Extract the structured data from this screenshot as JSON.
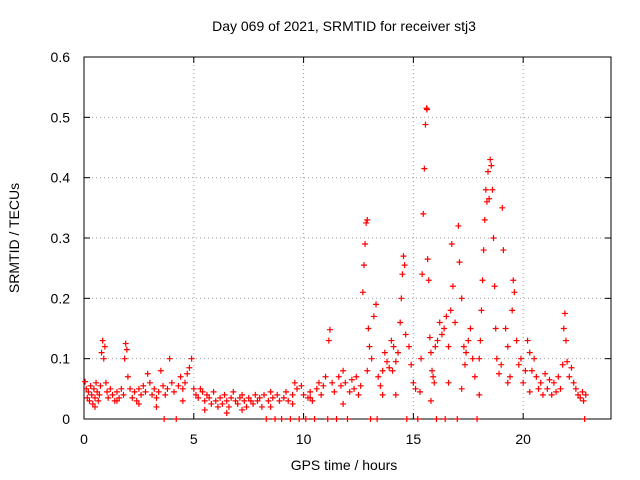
{
  "chart_data": {
    "type": "scatter",
    "title": "Day 069 of 2021, SRMTID for receiver stj3",
    "xlabel": "GPS time / hours",
    "ylabel": "SRMTID / TECUs",
    "xlim": [
      0,
      24
    ],
    "ylim": [
      0,
      0.6
    ],
    "xticks": [
      0,
      5,
      10,
      15,
      20
    ],
    "yticks": [
      0,
      0.1,
      0.2,
      0.3,
      0.4,
      0.5,
      0.6
    ],
    "xtick_labels": [
      "0",
      "5",
      "10",
      "15",
      "20"
    ],
    "ytick_labels": [
      "0",
      "0.1",
      "0.2",
      "0.3",
      "0.4",
      "0.5",
      "0.6"
    ],
    "grid": true,
    "marker": "+",
    "color": "#ff0000",
    "series": [
      {
        "name": "SRMTID",
        "points": [
          [
            0.05,
            0.062
          ],
          [
            0.1,
            0.05
          ],
          [
            0.15,
            0.035
          ],
          [
            0.2,
            0.045
          ],
          [
            0.25,
            0.03
          ],
          [
            0.3,
            0.055
          ],
          [
            0.35,
            0.04
          ],
          [
            0.4,
            0.025
          ],
          [
            0.45,
            0.05
          ],
          [
            0.5,
            0.035
          ],
          [
            0.55,
            0.06
          ],
          [
            0.6,
            0.045
          ],
          [
            0.65,
            0.03
          ],
          [
            0.7,
            0.04
          ],
          [
            0.75,
            0.055
          ],
          [
            0.8,
            0.11
          ],
          [
            0.85,
            0.13
          ],
          [
            0.9,
            0.1
          ],
          [
            0.95,
            0.12
          ],
          [
            1.0,
            0.06
          ],
          [
            1.05,
            0.045
          ],
          [
            1.1,
            0.035
          ],
          [
            1.2,
            0.05
          ],
          [
            1.3,
            0.04
          ],
          [
            1.4,
            0.03
          ],
          [
            1.5,
            0.045
          ],
          [
            1.6,
            0.035
          ],
          [
            1.7,
            0.05
          ],
          [
            1.8,
            0.04
          ],
          [
            1.85,
            0.1
          ],
          [
            1.9,
            0.125
          ],
          [
            1.95,
            0.115
          ],
          [
            2.0,
            0.07
          ],
          [
            2.1,
            0.05
          ],
          [
            2.2,
            0.035
          ],
          [
            2.3,
            0.045
          ],
          [
            2.4,
            0.03
          ],
          [
            2.5,
            0.05
          ],
          [
            2.6,
            0.04
          ],
          [
            2.7,
            0.055
          ],
          [
            2.8,
            0.045
          ],
          [
            2.9,
            0.075
          ],
          [
            3.0,
            0.06
          ],
          [
            3.1,
            0.04
          ],
          [
            3.2,
            0.05
          ],
          [
            3.3,
            0.035
          ],
          [
            3.4,
            0.045
          ],
          [
            3.5,
            0.08
          ],
          [
            3.6,
            0.055
          ],
          [
            3.65,
            0.0
          ],
          [
            3.7,
            0.04
          ],
          [
            3.8,
            0.05
          ],
          [
            3.9,
            0.1
          ],
          [
            4.0,
            0.06
          ],
          [
            4.1,
            0.045
          ],
          [
            4.2,
            0.0
          ],
          [
            4.3,
            0.055
          ],
          [
            4.4,
            0.07
          ],
          [
            4.5,
            0.05
          ],
          [
            4.6,
            0.06
          ],
          [
            4.7,
            0.075
          ],
          [
            4.8,
            0.085
          ],
          [
            4.9,
            0.1
          ],
          [
            5.0,
            0.05
          ],
          [
            5.1,
            0.04
          ],
          [
            5.2,
            0.035
          ],
          [
            5.3,
            0.05
          ],
          [
            5.4,
            0.045
          ],
          [
            5.5,
            0.03
          ],
          [
            5.6,
            0.04
          ],
          [
            5.7,
            0.035
          ],
          [
            5.8,
            0.025
          ],
          [
            5.9,
            0.045
          ],
          [
            6.0,
            0.03
          ],
          [
            6.1,
            0.02
          ],
          [
            6.2,
            0.035
          ],
          [
            6.3,
            0.025
          ],
          [
            6.4,
            0.04
          ],
          [
            6.5,
            0.03
          ],
          [
            6.6,
            0.02
          ],
          [
            6.7,
            0.035
          ],
          [
            6.8,
            0.045
          ],
          [
            6.9,
            0.03
          ],
          [
            7.0,
            0.025
          ],
          [
            7.1,
            0.035
          ],
          [
            7.2,
            0.04
          ],
          [
            7.3,
            0.03
          ],
          [
            7.4,
            0.02
          ],
          [
            7.5,
            0.035
          ],
          [
            7.6,
            0.03
          ],
          [
            7.7,
            0.025
          ],
          [
            7.8,
            0.04
          ],
          [
            7.9,
            0.03
          ],
          [
            8.0,
            0.035
          ],
          [
            8.1,
            0.02
          ],
          [
            8.2,
            0.04
          ],
          [
            8.3,
            0.0
          ],
          [
            8.4,
            0.03
          ],
          [
            8.5,
            0.045
          ],
          [
            8.6,
            0.035
          ],
          [
            8.7,
            0.0
          ],
          [
            8.8,
            0.04
          ],
          [
            8.9,
            0.03
          ],
          [
            9.0,
            0.0
          ],
          [
            9.1,
            0.035
          ],
          [
            9.2,
            0.045
          ],
          [
            9.3,
            0.03
          ],
          [
            9.4,
            0.0
          ],
          [
            9.5,
            0.04
          ],
          [
            9.6,
            0.06
          ],
          [
            9.7,
            0.05
          ],
          [
            9.8,
            0.0
          ],
          [
            9.9,
            0.055
          ],
          [
            10.0,
            0.04
          ],
          [
            10.1,
            0.0
          ],
          [
            10.2,
            0.035
          ],
          [
            10.3,
            0.045
          ],
          [
            10.4,
            0.03
          ],
          [
            10.5,
            0.0
          ],
          [
            10.6,
            0.05
          ],
          [
            10.7,
            0.06
          ],
          [
            10.8,
            0.04
          ],
          [
            10.9,
            0.055
          ],
          [
            11.0,
            0.07
          ],
          [
            11.1,
            0.0
          ],
          [
            11.15,
            0.13
          ],
          [
            11.2,
            0.148
          ],
          [
            11.3,
            0.06
          ],
          [
            11.4,
            0.045
          ],
          [
            11.5,
            0.0
          ],
          [
            11.6,
            0.07
          ],
          [
            11.7,
            0.055
          ],
          [
            11.8,
            0.08
          ],
          [
            11.9,
            0.06
          ],
          [
            12.0,
            0.0
          ],
          [
            12.1,
            0.045
          ],
          [
            12.2,
            0.065
          ],
          [
            12.3,
            0.05
          ],
          [
            12.4,
            0.07
          ],
          [
            12.5,
            0.04
          ],
          [
            12.6,
            0.055
          ],
          [
            12.7,
            0.21
          ],
          [
            12.75,
            0.255
          ],
          [
            12.8,
            0.29
          ],
          [
            12.85,
            0.325
          ],
          [
            12.9,
            0.33
          ],
          [
            12.95,
            0.15
          ],
          [
            13.0,
            0.12
          ],
          [
            13.05,
            0.0
          ],
          [
            13.1,
            0.1
          ],
          [
            13.2,
            0.17
          ],
          [
            13.3,
            0.19
          ],
          [
            13.35,
            0.0
          ],
          [
            13.4,
            0.07
          ],
          [
            13.5,
            0.055
          ],
          [
            13.6,
            0.08
          ],
          [
            13.7,
            0.11
          ],
          [
            13.8,
            0.095
          ],
          [
            13.9,
            0.085
          ],
          [
            14.0,
            0.13
          ],
          [
            14.05,
            0.08
          ],
          [
            14.1,
            0.12
          ],
          [
            14.2,
            0.095
          ],
          [
            14.3,
            0.11
          ],
          [
            14.4,
            0.16
          ],
          [
            14.45,
            0.2
          ],
          [
            14.5,
            0.24
          ],
          [
            14.55,
            0.27
          ],
          [
            14.6,
            0.255
          ],
          [
            14.65,
            0.14
          ],
          [
            14.7,
            0.0
          ],
          [
            14.8,
            0.12
          ],
          [
            14.9,
            0.09
          ],
          [
            15.0,
            0.06
          ],
          [
            15.1,
            0.05
          ],
          [
            15.2,
            0.0
          ],
          [
            15.3,
            0.045
          ],
          [
            15.35,
            0.1
          ],
          [
            15.4,
            0.24
          ],
          [
            15.45,
            0.34
          ],
          [
            15.5,
            0.415
          ],
          [
            15.55,
            0.488
          ],
          [
            15.6,
            0.515
          ],
          [
            15.62,
            0.513
          ],
          [
            15.65,
            0.265
          ],
          [
            15.7,
            0.23
          ],
          [
            15.75,
            0.135
          ],
          [
            15.8,
            0.11
          ],
          [
            15.85,
            0.08
          ],
          [
            15.9,
            0.07
          ],
          [
            15.95,
            0.06
          ],
          [
            16.0,
            0.12
          ],
          [
            16.05,
            0.0
          ],
          [
            16.1,
            0.13
          ],
          [
            16.2,
            0.16
          ],
          [
            16.3,
            0.14
          ],
          [
            16.4,
            0.15
          ],
          [
            16.45,
            0.0
          ],
          [
            16.5,
            0.17
          ],
          [
            16.6,
            0.12
          ],
          [
            16.7,
            0.18
          ],
          [
            16.75,
            0.29
          ],
          [
            16.8,
            0.22
          ],
          [
            16.9,
            0.16
          ],
          [
            17.0,
            0.0
          ],
          [
            17.05,
            0.32
          ],
          [
            17.1,
            0.26
          ],
          [
            17.2,
            0.2
          ],
          [
            17.3,
            0.12
          ],
          [
            17.35,
            0.09
          ],
          [
            17.4,
            0.11
          ],
          [
            17.5,
            0.13
          ],
          [
            17.6,
            0.15
          ],
          [
            17.7,
            0.1
          ],
          [
            17.8,
            0.07
          ],
          [
            17.9,
            0.0
          ],
          [
            18.0,
            0.1
          ],
          [
            18.05,
            0.13
          ],
          [
            18.1,
            0.18
          ],
          [
            18.15,
            0.23
          ],
          [
            18.2,
            0.28
          ],
          [
            18.25,
            0.33
          ],
          [
            18.3,
            0.38
          ],
          [
            18.35,
            0.36
          ],
          [
            18.4,
            0.41
          ],
          [
            18.45,
            0.365
          ],
          [
            18.5,
            0.43
          ],
          [
            18.55,
            0.42
          ],
          [
            18.6,
            0.38
          ],
          [
            18.65,
            0.3
          ],
          [
            18.7,
            0.22
          ],
          [
            18.75,
            0.15
          ],
          [
            18.8,
            0.1
          ],
          [
            18.9,
            0.075
          ],
          [
            19.0,
            0.09
          ],
          [
            19.05,
            0.35
          ],
          [
            19.1,
            0.28
          ],
          [
            19.2,
            0.15
          ],
          [
            19.3,
            0.12
          ],
          [
            19.4,
            0.07
          ],
          [
            19.5,
            0.18
          ],
          [
            19.55,
            0.23
          ],
          [
            19.6,
            0.21
          ],
          [
            19.7,
            0.13
          ],
          [
            19.8,
            0.09
          ],
          [
            19.9,
            0.1
          ],
          [
            20.0,
            0.06
          ],
          [
            20.1,
            0.08
          ],
          [
            20.2,
            0.13
          ],
          [
            20.3,
            0.11
          ],
          [
            20.4,
            0.08
          ],
          [
            20.5,
            0.1
          ],
          [
            20.6,
            0.07
          ],
          [
            20.7,
            0.05
          ],
          [
            20.8,
            0.06
          ],
          [
            20.9,
            0.04
          ],
          [
            21.0,
            0.075
          ],
          [
            21.1,
            0.05
          ],
          [
            21.2,
            0.065
          ],
          [
            21.3,
            0.04
          ],
          [
            21.4,
            0.06
          ],
          [
            21.5,
            0.045
          ],
          [
            21.6,
            0.07
          ],
          [
            21.7,
            0.05
          ],
          [
            21.8,
            0.09
          ],
          [
            21.85,
            0.15
          ],
          [
            21.9,
            0.175
          ],
          [
            21.95,
            0.13
          ],
          [
            22.0,
            0.095
          ],
          [
            22.1,
            0.07
          ],
          [
            22.2,
            0.085
          ],
          [
            22.3,
            0.06
          ],
          [
            22.4,
            0.05
          ],
          [
            22.5,
            0.04
          ],
          [
            22.6,
            0.035
          ],
          [
            22.7,
            0.045
          ],
          [
            22.75,
            0.03
          ],
          [
            22.8,
            0.0
          ],
          [
            22.85,
            0.04
          ],
          [
            0.5,
            0.02
          ],
          [
            1.5,
            0.03
          ],
          [
            2.5,
            0.025
          ],
          [
            3.3,
            0.02
          ],
          [
            4.5,
            0.03
          ],
          [
            5.5,
            0.015
          ],
          [
            6.5,
            0.01
          ],
          [
            7.2,
            0.015
          ],
          [
            8.5,
            0.02
          ],
          [
            9.5,
            0.025
          ],
          [
            10.3,
            0.035
          ],
          [
            11.8,
            0.025
          ],
          [
            12.9,
            0.08
          ],
          [
            13.6,
            0.04
          ],
          [
            14.2,
            0.04
          ],
          [
            15.8,
            0.03
          ],
          [
            16.6,
            0.06
          ],
          [
            17.2,
            0.05
          ],
          [
            18.0,
            0.04
          ],
          [
            19.3,
            0.06
          ],
          [
            20.3,
            0.045
          ]
        ]
      }
    ]
  }
}
